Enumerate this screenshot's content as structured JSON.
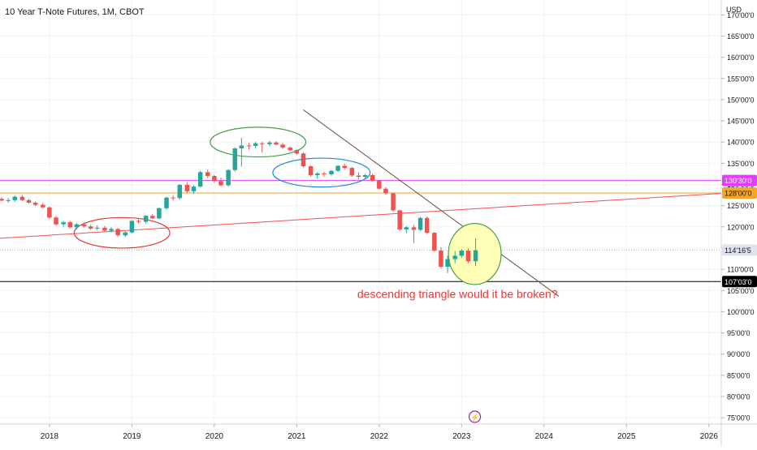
{
  "header": {
    "title": "10 Year T-Note Futures, 1M, CBOT"
  },
  "colors": {
    "up": "#26a69a",
    "down": "#ef5350",
    "magenta": "#e040fb",
    "orange": "#f5a623",
    "black": "#000000",
    "current": "#e0e3eb",
    "grid": "#f0f3fa",
    "annotation": "#e53935"
  },
  "chart_data": {
    "type": "candlestick",
    "currency": "USD",
    "y_ticks": [
      "75'00'0",
      "80'00'0",
      "85'00'0",
      "90'00'0",
      "95'00'0",
      "100'00'0",
      "105'00'0",
      "110'00'0",
      "115'00'0",
      "120'00'0",
      "125'00'0",
      "130'00'0",
      "135'00'0",
      "140'00'0",
      "145'00'0",
      "150'00'0",
      "155'00'0",
      "160'00'0",
      "165'00'0",
      "170'00'0"
    ],
    "y_tick_values": [
      75,
      80,
      85,
      90,
      95,
      100,
      105,
      110,
      115,
      120,
      125,
      130,
      135,
      140,
      145,
      150,
      155,
      160,
      165,
      170
    ],
    "ylim": [
      73.5,
      173.5
    ],
    "x_ticks": [
      "2018",
      "2019",
      "2020",
      "2021",
      "2022",
      "2023",
      "2024",
      "2025",
      "2026"
    ],
    "x_tick_years": [
      2018,
      2019,
      2020,
      2021,
      2022,
      2023,
      2024,
      2025,
      2026
    ],
    "xlim": [
      2017.4,
      2026.15
    ],
    "candles": [
      {
        "t": 2017.42,
        "o": 126.6,
        "h": 127.0,
        "l": 126.0,
        "c": 126.2
      },
      {
        "t": 2017.5,
        "o": 126.2,
        "h": 126.8,
        "l": 125.7,
        "c": 126.3
      },
      {
        "t": 2017.58,
        "o": 126.3,
        "h": 127.4,
        "l": 125.9,
        "c": 127.1
      },
      {
        "t": 2017.67,
        "o": 127.1,
        "h": 127.5,
        "l": 126.1,
        "c": 126.3
      },
      {
        "t": 2017.75,
        "o": 126.3,
        "h": 126.6,
        "l": 125.5,
        "c": 125.7
      },
      {
        "t": 2017.83,
        "o": 125.7,
        "h": 126.0,
        "l": 124.9,
        "c": 125.2
      },
      {
        "t": 2017.92,
        "o": 125.2,
        "h": 125.6,
        "l": 124.3,
        "c": 124.6
      },
      {
        "t": 2018.0,
        "o": 124.6,
        "h": 124.8,
        "l": 121.9,
        "c": 122.2
      },
      {
        "t": 2018.08,
        "o": 122.2,
        "h": 122.5,
        "l": 120.3,
        "c": 120.6
      },
      {
        "t": 2018.17,
        "o": 120.6,
        "h": 121.4,
        "l": 119.9,
        "c": 121.1
      },
      {
        "t": 2018.25,
        "o": 121.1,
        "h": 121.4,
        "l": 119.6,
        "c": 119.9
      },
      {
        "t": 2018.33,
        "o": 119.9,
        "h": 120.9,
        "l": 119.4,
        "c": 120.6
      },
      {
        "t": 2018.42,
        "o": 120.6,
        "h": 121.0,
        "l": 119.8,
        "c": 120.1
      },
      {
        "t": 2018.5,
        "o": 120.1,
        "h": 120.5,
        "l": 119.3,
        "c": 119.6
      },
      {
        "t": 2018.58,
        "o": 119.6,
        "h": 120.4,
        "l": 119.2,
        "c": 119.8
      },
      {
        "t": 2018.67,
        "o": 119.8,
        "h": 120.2,
        "l": 118.9,
        "c": 119.1
      },
      {
        "t": 2018.75,
        "o": 119.1,
        "h": 119.9,
        "l": 118.7,
        "c": 119.5
      },
      {
        "t": 2018.83,
        "o": 119.5,
        "h": 119.8,
        "l": 117.6,
        "c": 118.0
      },
      {
        "t": 2018.92,
        "o": 118.0,
        "h": 119.0,
        "l": 117.6,
        "c": 118.7
      },
      {
        "t": 2019.0,
        "o": 118.7,
        "h": 121.6,
        "l": 118.5,
        "c": 121.4
      },
      {
        "t": 2019.08,
        "o": 121.4,
        "h": 121.8,
        "l": 120.8,
        "c": 121.2
      },
      {
        "t": 2019.17,
        "o": 121.2,
        "h": 122.8,
        "l": 120.8,
        "c": 122.6
      },
      {
        "t": 2019.25,
        "o": 122.6,
        "h": 123.0,
        "l": 121.9,
        "c": 122.0
      },
      {
        "t": 2019.33,
        "o": 122.0,
        "h": 124.6,
        "l": 121.8,
        "c": 124.4
      },
      {
        "t": 2019.42,
        "o": 124.4,
        "h": 127.1,
        "l": 124.0,
        "c": 126.9
      },
      {
        "t": 2019.5,
        "o": 126.9,
        "h": 127.4,
        "l": 126.2,
        "c": 126.8
      },
      {
        "t": 2019.58,
        "o": 126.8,
        "h": 130.1,
        "l": 126.4,
        "c": 129.9
      },
      {
        "t": 2019.67,
        "o": 129.9,
        "h": 130.5,
        "l": 128.0,
        "c": 128.4
      },
      {
        "t": 2019.75,
        "o": 128.4,
        "h": 129.8,
        "l": 127.8,
        "c": 129.5
      },
      {
        "t": 2019.83,
        "o": 129.5,
        "h": 133.2,
        "l": 129.3,
        "c": 132.9
      },
      {
        "t": 2019.92,
        "o": 132.9,
        "h": 133.5,
        "l": 131.5,
        "c": 132.0
      },
      {
        "t": 2020.0,
        "o": 132.0,
        "h": 132.3,
        "l": 130.4,
        "c": 130.8
      },
      {
        "t": 2020.08,
        "o": 130.8,
        "h": 131.6,
        "l": 129.5,
        "c": 129.8
      },
      {
        "t": 2020.17,
        "o": 129.8,
        "h": 133.6,
        "l": 129.5,
        "c": 133.4
      },
      {
        "t": 2020.25,
        "o": 133.4,
        "h": 138.8,
        "l": 133.0,
        "c": 138.5
      },
      {
        "t": 2020.33,
        "o": 138.5,
        "h": 141.0,
        "l": 134.2,
        "c": 139.2
      },
      {
        "t": 2020.42,
        "o": 139.2,
        "h": 139.8,
        "l": 138.2,
        "c": 139.1
      },
      {
        "t": 2020.5,
        "o": 139.1,
        "h": 140.0,
        "l": 138.6,
        "c": 139.7
      },
      {
        "t": 2020.58,
        "o": 139.7,
        "h": 140.1,
        "l": 137.5,
        "c": 139.5
      },
      {
        "t": 2020.67,
        "o": 139.5,
        "h": 140.3,
        "l": 139.0,
        "c": 139.9
      },
      {
        "t": 2020.75,
        "o": 139.9,
        "h": 140.2,
        "l": 139.2,
        "c": 139.4
      },
      {
        "t": 2020.83,
        "o": 139.4,
        "h": 139.8,
        "l": 138.4,
        "c": 138.7
      },
      {
        "t": 2020.92,
        "o": 138.7,
        "h": 139.0,
        "l": 137.8,
        "c": 138.1
      },
      {
        "t": 2021.0,
        "o": 138.1,
        "h": 138.3,
        "l": 137.0,
        "c": 137.3
      },
      {
        "t": 2021.08,
        "o": 137.3,
        "h": 137.6,
        "l": 134.0,
        "c": 134.3
      },
      {
        "t": 2021.17,
        "o": 134.3,
        "h": 134.5,
        "l": 131.9,
        "c": 132.2
      },
      {
        "t": 2021.25,
        "o": 132.2,
        "h": 132.9,
        "l": 131.3,
        "c": 132.6
      },
      {
        "t": 2021.33,
        "o": 132.6,
        "h": 133.0,
        "l": 131.8,
        "c": 132.4
      },
      {
        "t": 2021.42,
        "o": 132.4,
        "h": 133.4,
        "l": 132.0,
        "c": 133.2
      },
      {
        "t": 2021.5,
        "o": 133.2,
        "h": 134.6,
        "l": 133.0,
        "c": 134.4
      },
      {
        "t": 2021.58,
        "o": 134.4,
        "h": 134.9,
        "l": 133.5,
        "c": 133.9
      },
      {
        "t": 2021.67,
        "o": 133.9,
        "h": 134.2,
        "l": 131.8,
        "c": 132.1
      },
      {
        "t": 2021.75,
        "o": 132.1,
        "h": 132.8,
        "l": 131.3,
        "c": 131.8
      },
      {
        "t": 2021.83,
        "o": 131.8,
        "h": 132.5,
        "l": 131.3,
        "c": 132.2
      },
      {
        "t": 2021.92,
        "o": 132.2,
        "h": 132.6,
        "l": 130.6,
        "c": 130.9
      },
      {
        "t": 2022.0,
        "o": 130.9,
        "h": 131.1,
        "l": 128.8,
        "c": 129.0
      },
      {
        "t": 2022.08,
        "o": 129.0,
        "h": 129.4,
        "l": 127.6,
        "c": 127.9
      },
      {
        "t": 2022.17,
        "o": 127.9,
        "h": 128.1,
        "l": 123.6,
        "c": 123.9
      },
      {
        "t": 2022.25,
        "o": 123.9,
        "h": 124.0,
        "l": 119.1,
        "c": 119.4
      },
      {
        "t": 2022.33,
        "o": 119.4,
        "h": 120.2,
        "l": 118.5,
        "c": 119.9
      },
      {
        "t": 2022.42,
        "o": 119.9,
        "h": 120.4,
        "l": 116.2,
        "c": 119.3
      },
      {
        "t": 2022.5,
        "o": 119.3,
        "h": 122.4,
        "l": 119.0,
        "c": 122.1
      },
      {
        "t": 2022.58,
        "o": 122.1,
        "h": 122.5,
        "l": 118.3,
        "c": 118.6
      },
      {
        "t": 2022.67,
        "o": 118.6,
        "h": 118.8,
        "l": 114.1,
        "c": 114.4
      },
      {
        "t": 2022.75,
        "o": 114.4,
        "h": 115.2,
        "l": 110.2,
        "c": 110.6
      },
      {
        "t": 2022.83,
        "o": 110.6,
        "h": 113.2,
        "l": 109.1,
        "c": 112.4
      },
      {
        "t": 2022.92,
        "o": 112.4,
        "h": 114.3,
        "l": 111.4,
        "c": 113.2
      },
      {
        "t": 2023.0,
        "o": 113.2,
        "h": 114.8,
        "l": 112.7,
        "c": 114.4
      },
      {
        "t": 2023.08,
        "o": 114.4,
        "h": 114.9,
        "l": 111.5,
        "c": 111.9
      },
      {
        "t": 2023.17,
        "o": 111.9,
        "h": 117.3,
        "l": 110.8,
        "c": 114.5
      }
    ],
    "levels": [
      {
        "value": 130.9375,
        "label": "130'30'0",
        "color": "#e040fb"
      },
      {
        "value": 128.0,
        "label": "128'00'0",
        "color": "#f5a623"
      },
      {
        "value": 107.09375,
        "label": "107'03'0",
        "color": "#000000"
      },
      {
        "value": 114.515625,
        "label": "114'16'5",
        "color": "#e0e3eb",
        "current": true
      }
    ],
    "trendlines": [
      {
        "from": [
          2017.4,
          117.3
        ],
        "to": [
          2026.15,
          127.9
        ],
        "color": "#ef5350"
      },
      {
        "from": [
          2021.08,
          147.6
        ],
        "to": [
          2024.18,
          103.6
        ],
        "color": "#6d4c41"
      }
    ],
    "ellipses": [
      {
        "cx": 2018.88,
        "cy": 118.6,
        "rx": 0.58,
        "ry": 3.6,
        "stroke": "#e53935",
        "fill": "none"
      },
      {
        "cx": 2020.53,
        "cy": 140.0,
        "rx": 0.58,
        "ry": 3.5,
        "stroke": "#43a047",
        "fill": "none"
      },
      {
        "cx": 2021.3,
        "cy": 132.8,
        "rx": 0.59,
        "ry": 3.4,
        "stroke": "#1e88e5",
        "fill": "none"
      },
      {
        "cx": 2023.16,
        "cy": 113.6,
        "rx": 0.32,
        "ry": 7.2,
        "stroke": "#43a047",
        "fill": "#ffffb8"
      }
    ],
    "annotations": [
      {
        "text": "descending triangle would it be broken?",
        "x": 2022.95,
        "y": 103.2,
        "color": "#e53935"
      }
    ],
    "event_marker": {
      "x": 2023.16,
      "glyph": "⚡"
    }
  }
}
